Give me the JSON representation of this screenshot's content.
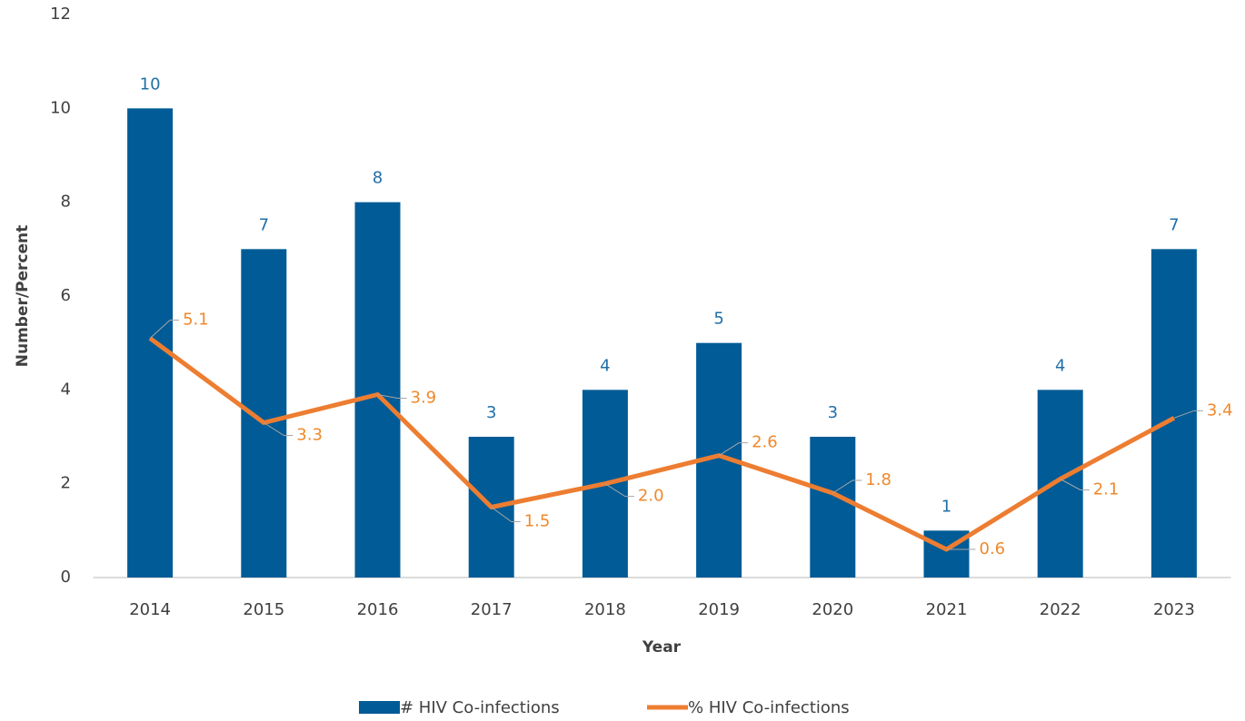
{
  "chart_data": {
    "type": "combo",
    "x_label": "Year",
    "y_label": "Number/Percent",
    "categories": [
      "2014",
      "2015",
      "2016",
      "2017",
      "2018",
      "2019",
      "2020",
      "2021",
      "2022",
      "2023"
    ],
    "series": [
      {
        "name": "# HIV Co-infections",
        "type": "bar",
        "color": "#005b96",
        "label_color": "#1f6fa8",
        "values": [
          10,
          7,
          8,
          3,
          4,
          5,
          3,
          1,
          4,
          7
        ]
      },
      {
        "name": "% HIV Co-infections",
        "type": "line",
        "color": "#ed7d31",
        "label_color": "#f0882c",
        "values": [
          5.1,
          3.3,
          3.9,
          1.5,
          2.0,
          2.6,
          1.8,
          0.6,
          2.1,
          3.4
        ],
        "value_labels": [
          "5.1",
          "3.3",
          "3.9",
          "1.5",
          "2.0",
          "2.6",
          "1.8",
          "0.6",
          "2.1",
          "3.4"
        ]
      }
    ],
    "ylim": [
      0,
      12
    ],
    "yticks": [
      0,
      2,
      4,
      6,
      8,
      10,
      12
    ],
    "grid": false,
    "legend": "bottom"
  }
}
